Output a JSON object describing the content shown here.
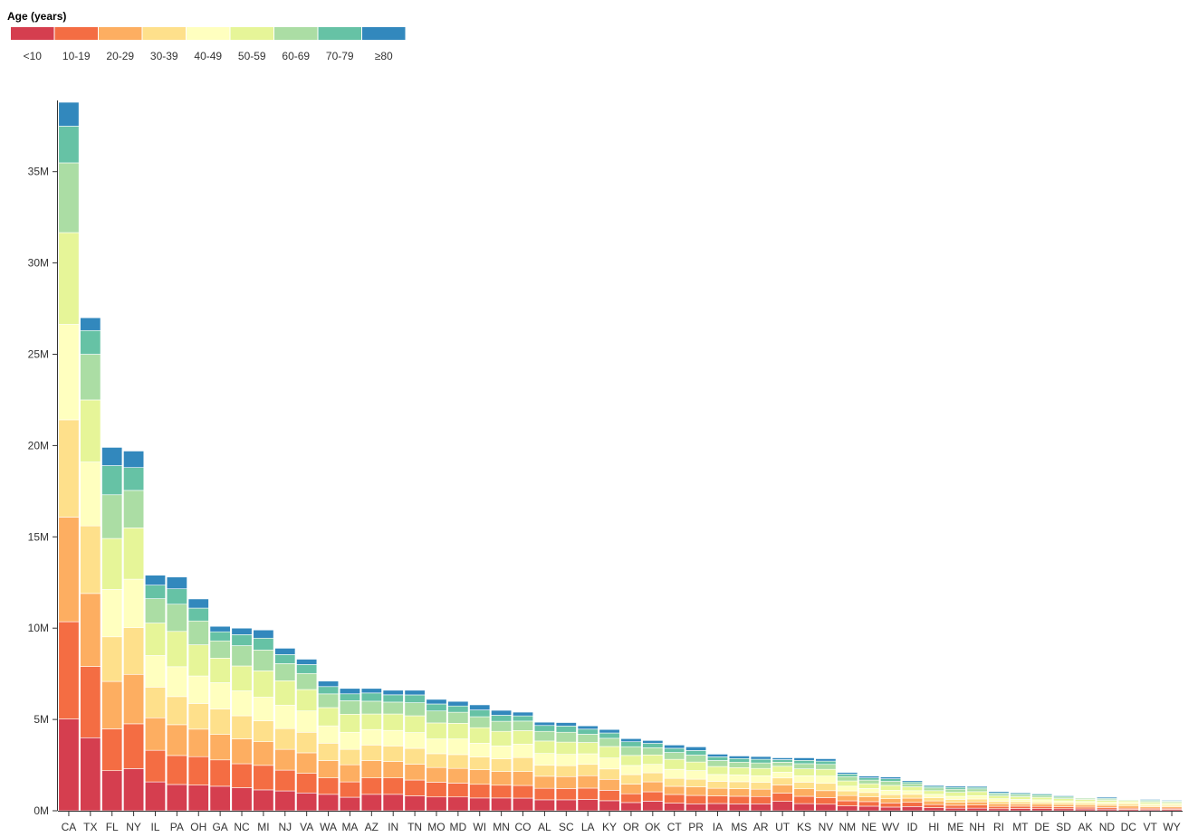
{
  "chart_data": {
    "type": "bar",
    "stacked": true,
    "legend": {
      "title": "Age (years)",
      "placement": "top-left",
      "labels": [
        "<10",
        "10-19",
        "20-29",
        "30-39",
        "40-49",
        "50-59",
        "60-69",
        "70-79",
        "≥80"
      ],
      "colors": [
        "#d53e4f",
        "#f46d43",
        "#fdae61",
        "#fee08b",
        "#ffffbf",
        "#e6f598",
        "#abdda4",
        "#66c2a5",
        "#3288bd"
      ]
    },
    "y_axis": {
      "ticks": [
        0,
        5,
        10,
        15,
        20,
        25,
        30,
        35
      ],
      "tick_labels": [
        "0M",
        "5M",
        "10M",
        "15M",
        "20M",
        "25M",
        "30M",
        "35M"
      ],
      "unit": "M",
      "ylim": [
        0,
        38.9
      ]
    },
    "grid": false,
    "categories": [
      "CA",
      "TX",
      "FL",
      "NY",
      "IL",
      "PA",
      "OH",
      "GA",
      "NC",
      "MI",
      "NJ",
      "VA",
      "WA",
      "MA",
      "AZ",
      "IN",
      "TN",
      "MO",
      "MD",
      "WI",
      "MN",
      "CO",
      "AL",
      "SC",
      "LA",
      "KY",
      "OR",
      "OK",
      "CT",
      "PR",
      "IA",
      "MS",
      "AR",
      "UT",
      "KS",
      "NV",
      "NM",
      "NE",
      "WV",
      "ID",
      "HI",
      "ME",
      "NH",
      "RI",
      "MT",
      "DE",
      "SD",
      "AK",
      "ND",
      "DC",
      "VT",
      "WY"
    ],
    "totals": [
      38.8,
      27.0,
      19.9,
      19.7,
      12.9,
      12.8,
      11.6,
      10.1,
      10.0,
      9.9,
      8.9,
      8.3,
      7.1,
      6.7,
      6.7,
      6.6,
      6.6,
      6.1,
      5.99,
      5.8,
      5.5,
      5.4,
      4.85,
      4.83,
      4.65,
      4.45,
      3.95,
      3.85,
      3.6,
      3.5,
      3.1,
      3.0,
      2.97,
      2.9,
      2.9,
      2.85,
      2.1,
      1.9,
      1.85,
      1.65,
      1.4,
      1.35,
      1.35,
      1.05,
      1.0,
      0.95,
      0.85,
      0.73,
      0.75,
      0.66,
      0.63,
      0.58
    ],
    "series": [
      {
        "name": "<10",
        "values": [
          5.0,
          4.0,
          2.2,
          2.3,
          1.6,
          1.45,
          1.4,
          1.35,
          1.25,
          1.15,
          1.1,
          1.0,
          0.9,
          0.75,
          0.9,
          0.9,
          0.8,
          0.75,
          0.75,
          0.7,
          0.7,
          0.68,
          0.6,
          0.6,
          0.62,
          0.55,
          0.45,
          0.53,
          0.42,
          0.38,
          0.4,
          0.38,
          0.38,
          0.51,
          0.39,
          0.36,
          0.27,
          0.25,
          0.2,
          0.23,
          0.17,
          0.14,
          0.14,
          0.11,
          0.12,
          0.11,
          0.11,
          0.1,
          0.09,
          0.07,
          0.06,
          0.07
        ]
      },
      {
        "name": "10-19",
        "values": [
          5.3,
          3.9,
          2.3,
          2.45,
          1.75,
          1.6,
          1.55,
          1.45,
          1.3,
          1.35,
          1.15,
          1.1,
          0.9,
          0.85,
          0.9,
          0.9,
          0.85,
          0.8,
          0.75,
          0.75,
          0.7,
          0.68,
          0.63,
          0.62,
          0.62,
          0.57,
          0.48,
          0.52,
          0.48,
          0.46,
          0.42,
          0.42,
          0.4,
          0.45,
          0.4,
          0.36,
          0.28,
          0.25,
          0.23,
          0.23,
          0.17,
          0.16,
          0.17,
          0.13,
          0.13,
          0.12,
          0.11,
          0.1,
          0.09,
          0.07,
          0.08,
          0.07
        ]
      },
      {
        "name": "20-29",
        "values": [
          5.7,
          4.0,
          2.6,
          2.7,
          1.8,
          1.7,
          1.5,
          1.4,
          1.35,
          1.3,
          1.15,
          1.15,
          0.95,
          0.95,
          0.95,
          0.9,
          0.85,
          0.8,
          0.8,
          0.8,
          0.75,
          0.75,
          0.66,
          0.65,
          0.68,
          0.6,
          0.53,
          0.55,
          0.45,
          0.47,
          0.42,
          0.42,
          0.4,
          0.45,
          0.41,
          0.38,
          0.29,
          0.26,
          0.23,
          0.23,
          0.2,
          0.16,
          0.17,
          0.15,
          0.13,
          0.12,
          0.12,
          0.11,
          0.11,
          0.12,
          0.08,
          0.08
        ]
      },
      {
        "name": "30-39",
        "values": [
          5.3,
          3.7,
          2.45,
          2.55,
          1.7,
          1.55,
          1.4,
          1.4,
          1.25,
          1.15,
          1.15,
          1.15,
          0.95,
          0.85,
          0.85,
          0.85,
          0.85,
          0.75,
          0.75,
          0.7,
          0.7,
          0.75,
          0.6,
          0.6,
          0.62,
          0.57,
          0.52,
          0.5,
          0.44,
          0.42,
          0.38,
          0.38,
          0.37,
          0.38,
          0.36,
          0.4,
          0.26,
          0.24,
          0.22,
          0.21,
          0.18,
          0.16,
          0.16,
          0.13,
          0.12,
          0.11,
          0.1,
          0.1,
          0.09,
          0.12,
          0.07,
          0.07
        ]
      },
      {
        "name": "40-49",
        "values": [
          5.2,
          3.5,
          2.6,
          2.65,
          1.75,
          1.65,
          1.5,
          1.45,
          1.35,
          1.3,
          1.3,
          1.2,
          0.95,
          0.95,
          0.85,
          0.85,
          0.85,
          0.8,
          0.85,
          0.75,
          0.7,
          0.72,
          0.65,
          0.62,
          0.58,
          0.6,
          0.5,
          0.47,
          0.5,
          0.47,
          0.38,
          0.38,
          0.37,
          0.32,
          0.35,
          0.4,
          0.26,
          0.22,
          0.24,
          0.2,
          0.18,
          0.17,
          0.18,
          0.14,
          0.12,
          0.12,
          0.1,
          0.1,
          0.09,
          0.09,
          0.08,
          0.07
        ]
      },
      {
        "name": "50-59",
        "values": [
          5.0,
          3.4,
          2.8,
          2.8,
          1.8,
          1.95,
          1.7,
          1.35,
          1.35,
          1.45,
          1.35,
          1.2,
          1.0,
          1.0,
          0.85,
          0.9,
          0.9,
          0.87,
          0.85,
          0.85,
          0.8,
          0.73,
          0.68,
          0.67,
          0.62,
          0.63,
          0.55,
          0.52,
          0.55,
          0.47,
          0.44,
          0.4,
          0.4,
          0.32,
          0.38,
          0.37,
          0.29,
          0.26,
          0.27,
          0.21,
          0.2,
          0.22,
          0.22,
          0.15,
          0.15,
          0.13,
          0.12,
          0.11,
          0.1,
          0.08,
          0.1,
          0.08
        ]
      },
      {
        "name": "60-69",
        "values": [
          3.8,
          2.5,
          2.4,
          2.05,
          1.35,
          1.5,
          1.3,
          0.95,
          1.1,
          1.15,
          0.95,
          0.9,
          0.75,
          0.75,
          0.7,
          0.65,
          0.7,
          0.65,
          0.6,
          0.6,
          0.55,
          0.51,
          0.53,
          0.54,
          0.45,
          0.45,
          0.48,
          0.4,
          0.38,
          0.38,
          0.33,
          0.3,
          0.3,
          0.22,
          0.28,
          0.27,
          0.24,
          0.2,
          0.22,
          0.17,
          0.15,
          0.17,
          0.15,
          0.1,
          0.11,
          0.1,
          0.09,
          0.07,
          0.07,
          0.05,
          0.07,
          0.06
        ]
      },
      {
        "name": "70-79",
        "values": [
          2.0,
          1.3,
          1.6,
          1.25,
          0.75,
          0.85,
          0.7,
          0.5,
          0.6,
          0.65,
          0.5,
          0.5,
          0.4,
          0.38,
          0.45,
          0.4,
          0.42,
          0.38,
          0.34,
          0.37,
          0.33,
          0.28,
          0.32,
          0.34,
          0.28,
          0.29,
          0.27,
          0.24,
          0.23,
          0.25,
          0.2,
          0.2,
          0.2,
          0.14,
          0.18,
          0.18,
          0.14,
          0.12,
          0.14,
          0.1,
          0.09,
          0.1,
          0.09,
          0.07,
          0.07,
          0.07,
          0.06,
          0.03,
          0.05,
          0.03,
          0.05,
          0.04
        ]
      },
      {
        "name": "≥80",
        "values": [
          1.3,
          0.7,
          1.0,
          0.9,
          0.55,
          0.65,
          0.5,
          0.3,
          0.35,
          0.45,
          0.35,
          0.3,
          0.3,
          0.3,
          0.25,
          0.25,
          0.25,
          0.25,
          0.25,
          0.28,
          0.27,
          0.2,
          0.18,
          0.19,
          0.18,
          0.19,
          0.17,
          0.16,
          0.18,
          0.2,
          0.15,
          0.14,
          0.15,
          0.1,
          0.14,
          0.13,
          0.09,
          0.1,
          0.1,
          0.07,
          0.06,
          0.07,
          0.06,
          0.07,
          0.05,
          0.04,
          0.04,
          0.01,
          0.06,
          0.03,
          0.04,
          0.04
        ]
      }
    ]
  }
}
